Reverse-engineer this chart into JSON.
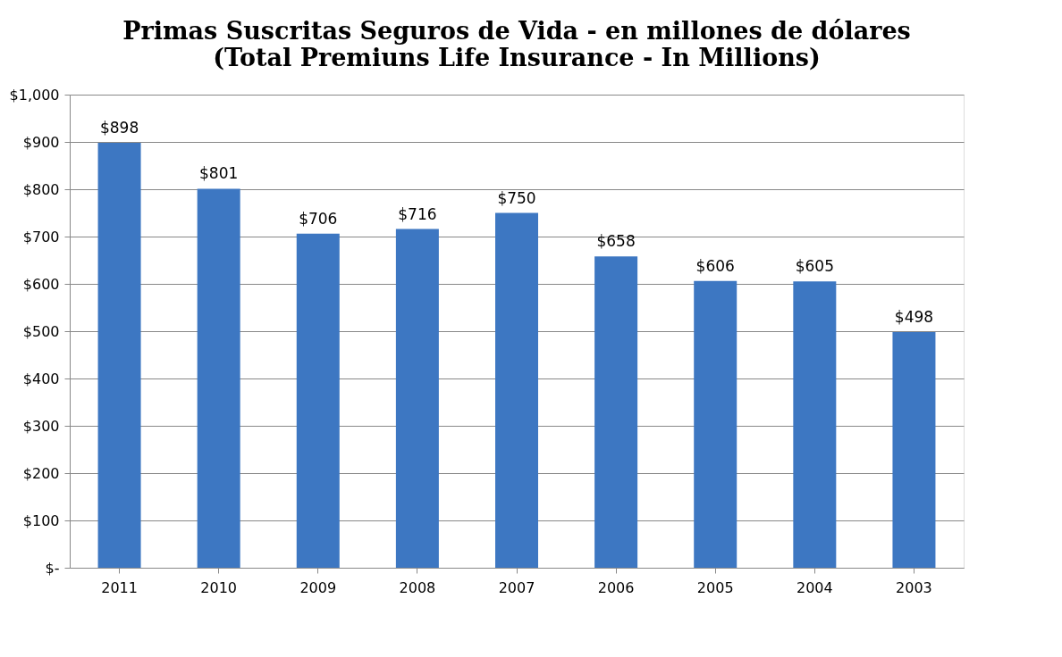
{
  "chart_data": {
    "type": "bar",
    "title": "Primas Suscritas Seguros de Vida - en millones de dólares",
    "subtitle": "(Total Premiuns Life Insurance - In Millions)",
    "categories": [
      "2011",
      "2010",
      "2009",
      "2008",
      "2007",
      "2006",
      "2005",
      "2004",
      "2003"
    ],
    "values": [
      898,
      801,
      706,
      716,
      750,
      658,
      606,
      605,
      498
    ],
    "value_labels": [
      "$898",
      "$801",
      "$706",
      "$716",
      "$750",
      "$658",
      "$606",
      "$605",
      "$498"
    ],
    "color": "#3d77c2",
    "ylim": [
      0,
      1000
    ],
    "yticks": [
      {
        "value": 0,
        "label": "$-"
      },
      {
        "value": 100,
        "label": "$100"
      },
      {
        "value": 200,
        "label": "$200"
      },
      {
        "value": 300,
        "label": "$300"
      },
      {
        "value": 400,
        "label": "$400"
      },
      {
        "value": 500,
        "label": "$500"
      },
      {
        "value": 600,
        "label": "$600"
      },
      {
        "value": 700,
        "label": "$700"
      },
      {
        "value": 800,
        "label": "$800"
      },
      {
        "value": 900,
        "label": "$900"
      },
      {
        "value": 1000,
        "label": "$1,000"
      }
    ],
    "grid": "y"
  }
}
